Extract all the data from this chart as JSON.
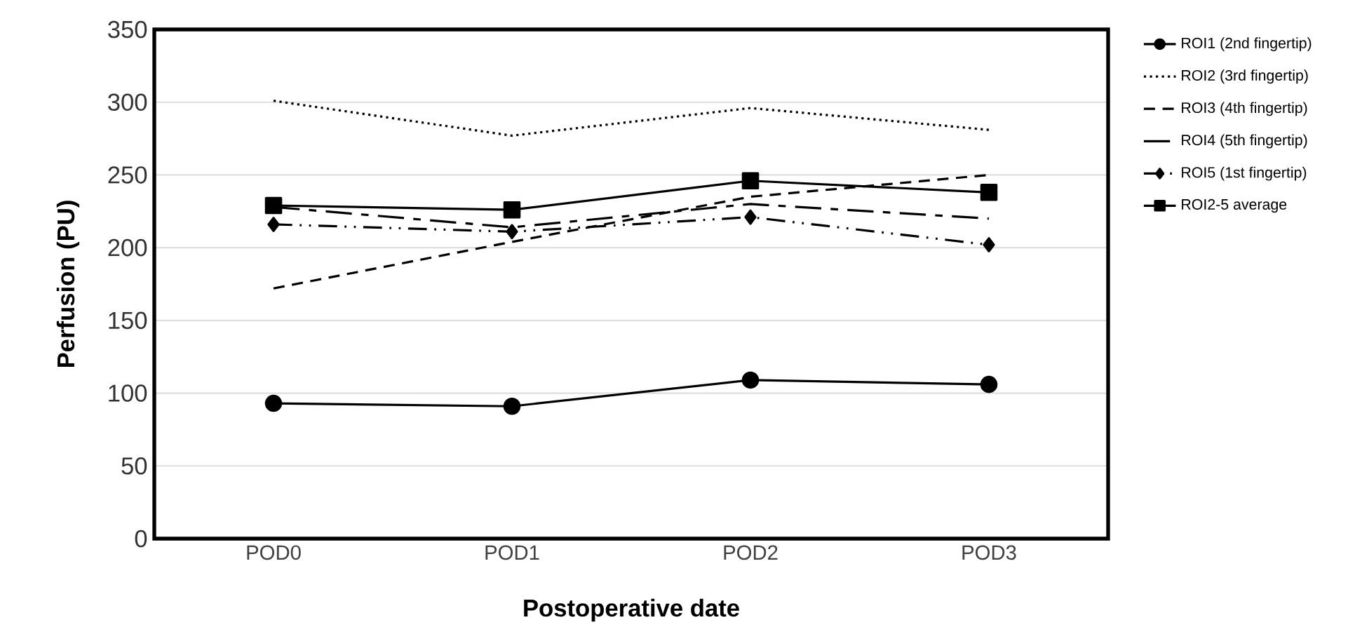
{
  "chart_data": {
    "type": "line",
    "xlabel": "Postoperative date",
    "ylabel": "Perfusion (PU)",
    "categories": [
      "POD0",
      "POD1",
      "POD2",
      "POD3"
    ],
    "series": [
      {
        "name": "ROI1 (2nd fingertip)",
        "color": "#000000",
        "marker": "circle",
        "line_style": "solid",
        "values": [
          93,
          91,
          109,
          106
        ]
      },
      {
        "name": "ROI2 (3rd fingertip)",
        "color": "#000000",
        "marker": "none",
        "line_style": "dotted",
        "values": [
          301,
          277,
          296,
          281
        ]
      },
      {
        "name": "ROI3 (4th fingertip)",
        "color": "#000000",
        "marker": "none",
        "line_style": "dashed",
        "values": [
          172,
          204,
          235,
          250
        ]
      },
      {
        "name": "ROI4 (5th fingertip)",
        "color": "#000000",
        "marker": "none",
        "line_style": "long dashed",
        "values": [
          228,
          214,
          230,
          220
        ]
      },
      {
        "name": "ROI5 (1st fingertip)",
        "color": "#000000",
        "marker": "diamond",
        "line_style": "dash dot dot",
        "values": [
          216,
          211,
          221,
          202
        ]
      },
      {
        "name": "ROI2-5 average",
        "color": "#000000",
        "marker": "square",
        "line_style": "solid",
        "values": [
          229,
          226,
          246,
          238
        ]
      }
    ],
    "ylim": [
      0,
      350
    ],
    "yticks": [
      0,
      50,
      100,
      150,
      200,
      250,
      300,
      350
    ],
    "grid": "y",
    "legend": "right"
  }
}
